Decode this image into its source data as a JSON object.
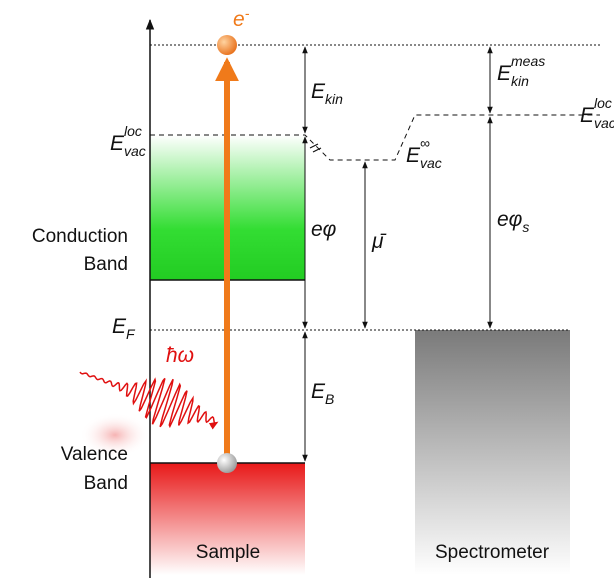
{
  "labels": {
    "electron": {
      "main": "e",
      "sup": "-"
    },
    "e_kin": {
      "main": "E",
      "sub": "kin"
    },
    "e_vac_loc_left": {
      "main": "E",
      "sup": "loc",
      "sub": "vac"
    },
    "e_vac_inf": {
      "main": "E",
      "sup": "∞",
      "sub": "vac"
    },
    "work_function": {
      "main": "eφ"
    },
    "chem_potential": {
      "main": "μ̄"
    },
    "conduction_band": [
      "Conduction",
      "Band"
    ],
    "fermi": {
      "main": "E",
      "sub": "F"
    },
    "photon": {
      "main": "ħω"
    },
    "e_b": {
      "main": "E",
      "sub": "B"
    },
    "valence_band": [
      "Valence",
      "Band"
    ],
    "sample": "Sample",
    "spectrometer": "Spectrometer",
    "e_kin_meas": {
      "main": "E",
      "sup": "meas",
      "sub": "kin"
    },
    "work_function_s": {
      "main": "eφ",
      "sub": "s"
    },
    "e_vac_loc_right": {
      "main": "E",
      "sup": "loc",
      "sub": "vac"
    }
  }
}
